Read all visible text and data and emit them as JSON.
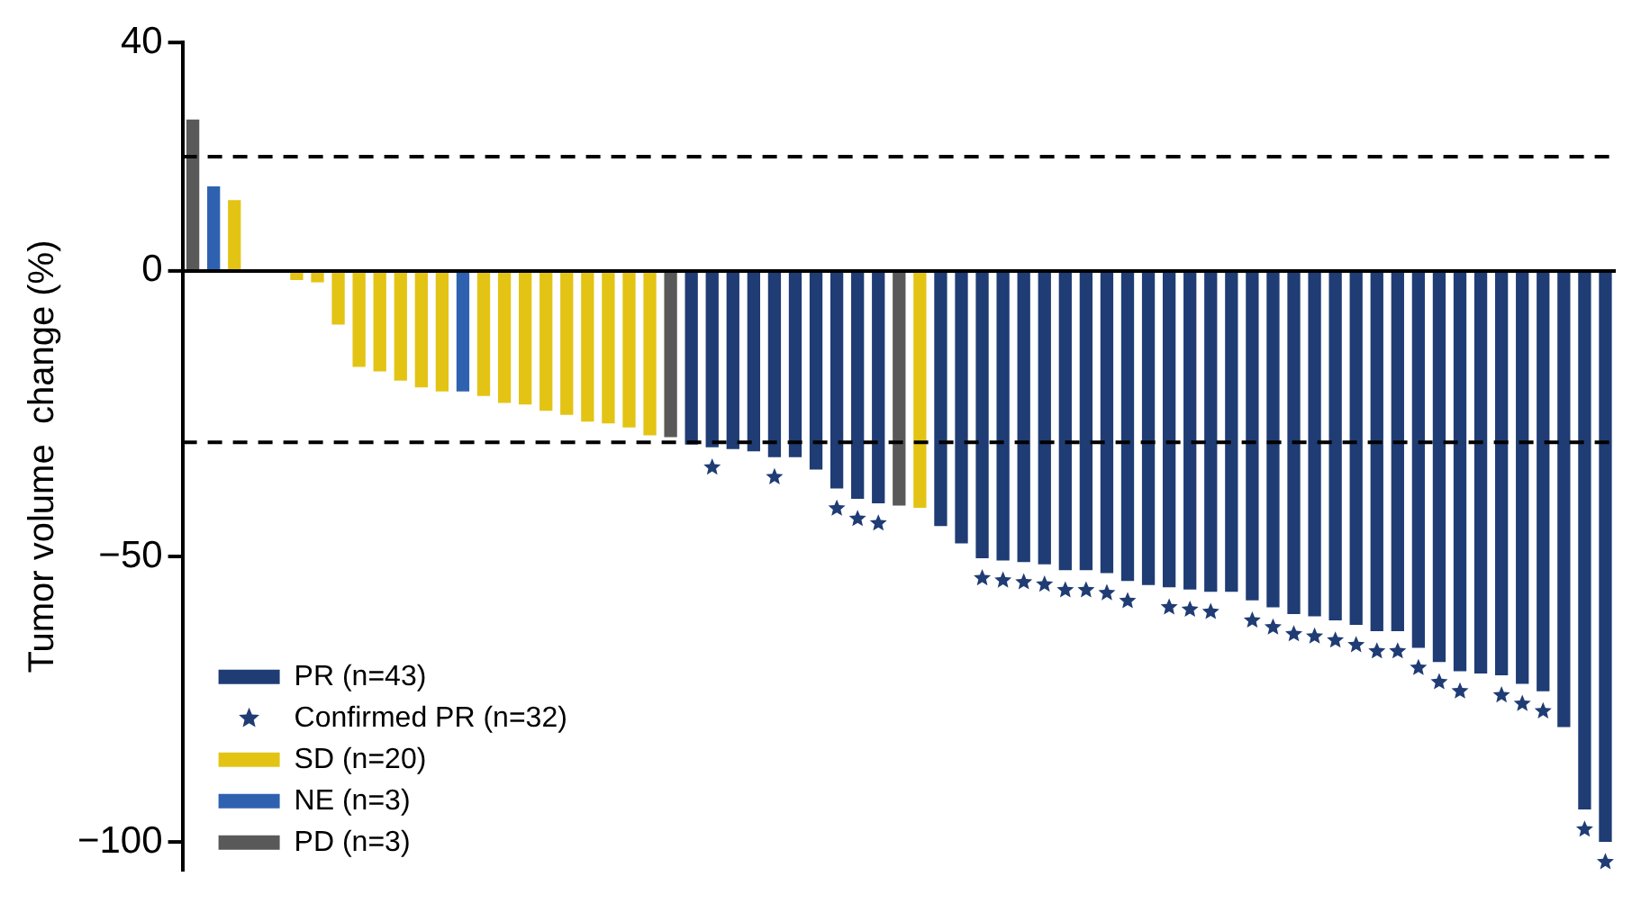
{
  "chart_data": {
    "type": "bar",
    "ylabel": "Tumor volume  change (%)",
    "categories": [
      null,
      null,
      null,
      null,
      null,
      null,
      null,
      null,
      null,
      null,
      null,
      null,
      null,
      null,
      null,
      null,
      null,
      null,
      null,
      null,
      null,
      null,
      null,
      null,
      null,
      null,
      null,
      null,
      null,
      null,
      null,
      null,
      null,
      null,
      null,
      null,
      null,
      null,
      null,
      null,
      null,
      null,
      null,
      null,
      null,
      null,
      null,
      null,
      null,
      null,
      null,
      null,
      null,
      null,
      null,
      null,
      null,
      null,
      null,
      null,
      null,
      null,
      null,
      null,
      null,
      null,
      null,
      null,
      null
    ],
    "series": [
      {
        "name": "PR (n=43)",
        "color": "#1f3c74",
        "values": [
          null,
          null,
          null,
          null,
          null,
          null,
          null,
          null,
          null,
          null,
          null,
          null,
          null,
          null,
          null,
          null,
          null,
          null,
          null,
          null,
          null,
          null,
          null,
          null,
          -30.4,
          -30.9,
          -31.2,
          -31.6,
          -32.6,
          -32.6,
          -34.8,
          -38.1,
          -39.9,
          -40.7,
          null,
          null,
          -44.7,
          -47.7,
          -50.3,
          -50.7,
          -51.0,
          -51.4,
          -52.4,
          -52.4,
          -52.9,
          -54.3,
          -55.0,
          -55.4,
          -55.8,
          -56.2,
          -56.2,
          -57.7,
          -58.9,
          -60.1,
          -60.5,
          -61.2,
          -62.0,
          -63.1,
          -63.1,
          -66.0,
          -68.5,
          -70.1,
          -70.5,
          -70.8,
          -72.3,
          -73.6,
          -79.9,
          -94.3,
          -100
        ]
      },
      {
        "name": "Confirmed PR (n=32)",
        "type": "scatter",
        "marker": "star",
        "color": "#1f3c74",
        "values": [
          null,
          null,
          null,
          null,
          null,
          null,
          null,
          null,
          null,
          null,
          null,
          null,
          null,
          null,
          null,
          null,
          null,
          null,
          null,
          null,
          null,
          null,
          null,
          null,
          null,
          -34.4,
          null,
          null,
          -36.1,
          null,
          null,
          -41.6,
          -43.4,
          -44.2,
          null,
          null,
          null,
          null,
          -53.8,
          -54.2,
          -54.5,
          -54.9,
          -55.9,
          -55.9,
          -56.4,
          -57.8,
          null,
          -58.9,
          -59.3,
          -59.7,
          null,
          -61.2,
          -62.4,
          -63.6,
          -64.0,
          -64.7,
          -65.5,
          -66.6,
          -66.6,
          -69.5,
          -72.0,
          -73.6,
          null,
          -74.3,
          -75.8,
          -77.1,
          null,
          -97.8,
          -103.5
        ]
      },
      {
        "name": "SD (n=20)",
        "color": "#e3c414",
        "values": [
          null,
          null,
          12.4,
          0,
          null,
          -1.6,
          -2.0,
          -9.4,
          -16.8,
          -17.6,
          -19.2,
          -20.4,
          -21.1,
          null,
          -21.9,
          -23.1,
          -23.4,
          -24.5,
          -25.2,
          -26.4,
          -26.7,
          -27.4,
          -28.8,
          null,
          null,
          null,
          null,
          null,
          null,
          null,
          null,
          null,
          null,
          null,
          null,
          -41.5,
          null,
          null,
          null,
          null,
          null,
          null,
          null,
          null,
          null,
          null,
          null,
          null,
          null,
          null,
          null,
          null,
          null,
          null,
          null,
          null,
          null,
          null,
          null,
          null,
          null,
          null,
          null,
          null,
          null,
          null,
          null,
          null,
          null
        ]
      },
      {
        "name": "NE (n=3)",
        "color": "#2e62b0",
        "values": [
          null,
          14.8,
          null,
          null,
          0,
          null,
          null,
          null,
          null,
          null,
          null,
          null,
          null,
          -21.1,
          null,
          null,
          null,
          null,
          null,
          null,
          null,
          null,
          null,
          null,
          null,
          null,
          null,
          null,
          null,
          null,
          null,
          null,
          null,
          null,
          null,
          null,
          null,
          null,
          null,
          null,
          null,
          null,
          null,
          null,
          null,
          null,
          null,
          null,
          null,
          null,
          null,
          null,
          null,
          null,
          null,
          null,
          null,
          null,
          null,
          null,
          null,
          null,
          null,
          null,
          null,
          null,
          null,
          null,
          null
        ]
      },
      {
        "name": "PD (n=3)",
        "color": "#595959",
        "values": [
          26.5,
          null,
          null,
          null,
          null,
          null,
          null,
          null,
          null,
          null,
          null,
          null,
          null,
          null,
          null,
          null,
          null,
          null,
          null,
          null,
          null,
          null,
          null,
          -29.1,
          null,
          null,
          null,
          null,
          null,
          null,
          null,
          null,
          null,
          null,
          -41.1,
          null,
          null,
          null,
          null,
          null,
          null,
          null,
          null,
          null,
          null,
          null,
          null,
          null,
          null,
          null,
          null,
          null,
          null,
          null,
          null,
          null,
          null,
          null,
          null,
          null,
          null,
          null,
          null,
          null,
          null,
          null,
          null,
          null,
          null
        ]
      }
    ],
    "ylim": [
      -105,
      40
    ],
    "yticks": [
      40,
      0,
      {
        "value": -50,
        "label": "−50"
      },
      {
        "value": -100,
        "label": "−100"
      }
    ],
    "ref_lines": [
      {
        "axis": "y",
        "value": 0,
        "color": "#000000",
        "line_style": "solid"
      },
      {
        "axis": "y",
        "value": 20,
        "color": "#000000",
        "line_style": "dashed"
      },
      {
        "axis": "y",
        "value": -30,
        "color": "#000000",
        "line_style": "dashed"
      }
    ],
    "grid": false,
    "legend": "bottom left",
    "tick_labels": "y"
  }
}
